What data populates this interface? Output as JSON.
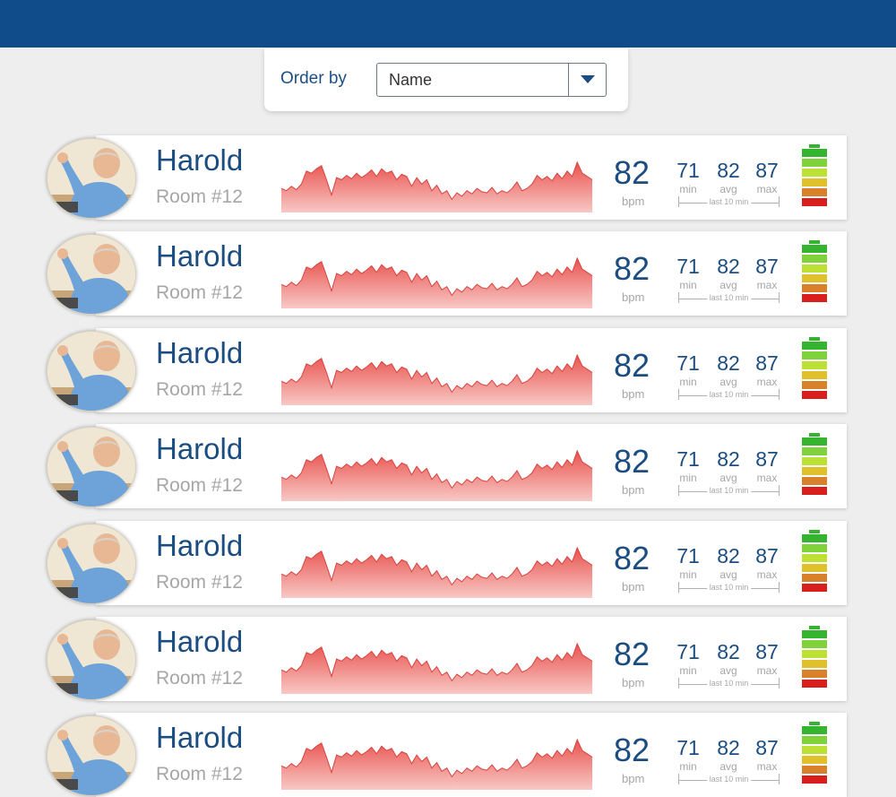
{
  "toolbar": {
    "order_label": "Order by",
    "select_value": "Name"
  },
  "colors": {
    "header": "#0f4c89",
    "accent_text": "#1b4d80",
    "sparkline": "#ec6a66",
    "battery_levels": [
      "#35b52f",
      "#7fd23a",
      "#bde035",
      "#e0c12c",
      "#d8802a",
      "#d91e1e"
    ]
  },
  "patients": [
    {
      "name": "Harold",
      "room": "Room #12",
      "bpm": "82",
      "bpm_unit": "bpm",
      "min": "71",
      "avg": "82",
      "max": "87",
      "min_label": "min",
      "avg_label": "avg",
      "max_label": "max",
      "range_label": "last 10 min",
      "battery_level": 1.0
    },
    {
      "name": "Harold",
      "room": "Room #12",
      "bpm": "82",
      "bpm_unit": "bpm",
      "min": "71",
      "avg": "82",
      "max": "87",
      "min_label": "min",
      "avg_label": "avg",
      "max_label": "max",
      "range_label": "last 10 min",
      "battery_level": 1.0
    },
    {
      "name": "Harold",
      "room": "Room #12",
      "bpm": "82",
      "bpm_unit": "bpm",
      "min": "71",
      "avg": "82",
      "max": "87",
      "min_label": "min",
      "avg_label": "avg",
      "max_label": "max",
      "range_label": "last 10 min",
      "battery_level": 1.0
    },
    {
      "name": "Harold",
      "room": "Room #12",
      "bpm": "82",
      "bpm_unit": "bpm",
      "min": "71",
      "avg": "82",
      "max": "87",
      "min_label": "min",
      "avg_label": "avg",
      "max_label": "max",
      "range_label": "last 10 min",
      "battery_level": 1.0
    },
    {
      "name": "Harold",
      "room": "Room #12",
      "bpm": "82",
      "bpm_unit": "bpm",
      "min": "71",
      "avg": "82",
      "max": "87",
      "min_label": "min",
      "avg_label": "avg",
      "max_label": "max",
      "range_label": "last 10 min",
      "battery_level": 1.0
    },
    {
      "name": "Harold",
      "room": "Room #12",
      "bpm": "82",
      "bpm_unit": "bpm",
      "min": "71",
      "avg": "82",
      "max": "87",
      "min_label": "min",
      "avg_label": "avg",
      "max_label": "max",
      "range_label": "last 10 min",
      "battery_level": 1.0
    },
    {
      "name": "Harold",
      "room": "Room #12",
      "bpm": "82",
      "bpm_unit": "bpm",
      "min": "71",
      "avg": "82",
      "max": "87",
      "min_label": "min",
      "avg_label": "avg",
      "max_label": "max",
      "range_label": "last 10 min",
      "battery_level": 1.0
    }
  ],
  "heart_trace": [
    62,
    60,
    64,
    61,
    66,
    78,
    76,
    80,
    83,
    70,
    56,
    72,
    70,
    74,
    71,
    76,
    72,
    75,
    79,
    73,
    80,
    76,
    78,
    70,
    75,
    73,
    64,
    72,
    66,
    70,
    60,
    65,
    57,
    60,
    52,
    58,
    55,
    60,
    57,
    62,
    59,
    58,
    63,
    57,
    60,
    58,
    62,
    68,
    60,
    62,
    66,
    74,
    70,
    73,
    69,
    76,
    71,
    78,
    73,
    86,
    76,
    73,
    70
  ]
}
